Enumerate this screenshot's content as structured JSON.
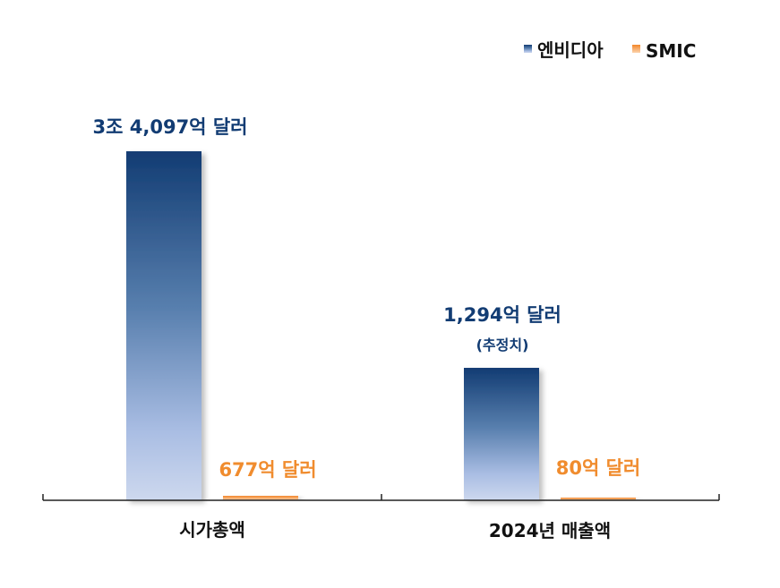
{
  "chart_data": {
    "type": "bar",
    "categories": [
      "시가총액",
      "2024년 매출액"
    ],
    "series": [
      {
        "name": "엔비디아",
        "values": [
          34097,
          1294
        ],
        "labels": [
          "3조 4,097억 달러",
          "1,294억 달러"
        ],
        "notes": [
          "",
          "(추정치)"
        ],
        "color": "#143d73"
      },
      {
        "name": "SMIC",
        "values": [
          677,
          80
        ],
        "labels": [
          "677억 달러",
          "80억 달러"
        ],
        "color": "#f08c2e"
      }
    ],
    "unit": "억 달러",
    "legend_position": "top-right",
    "grid": false,
    "broken_axis": true
  }
}
